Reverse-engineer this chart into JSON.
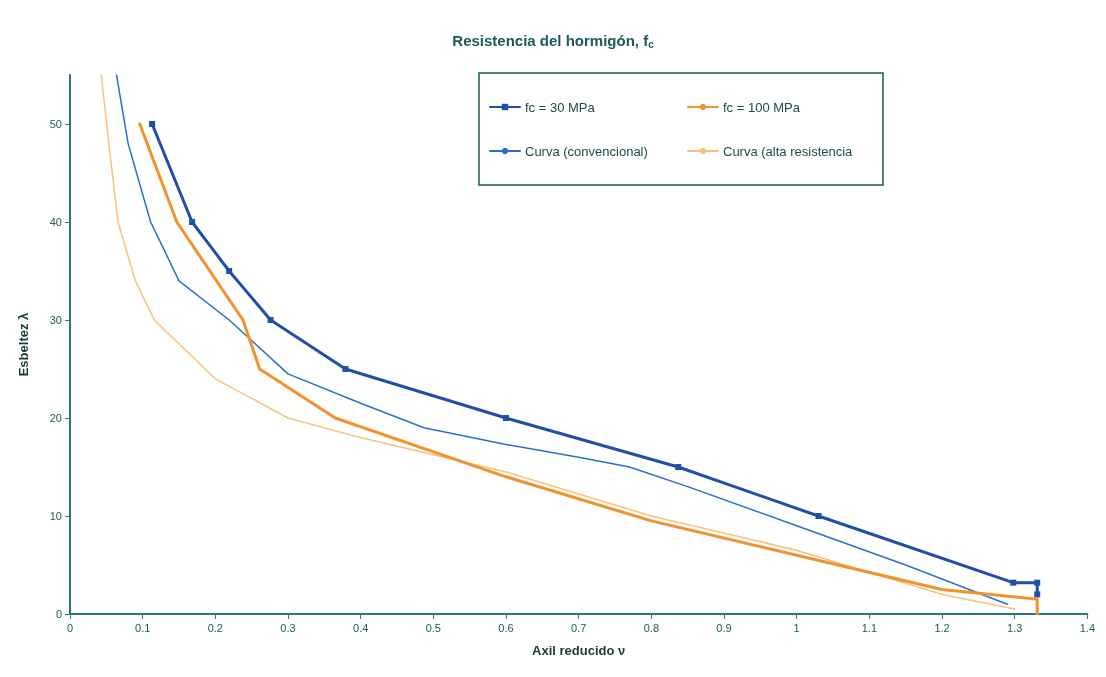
{
  "chart_data": {
    "type": "line",
    "title": "Resistencia del hormigón, f$_{c}$",
    "xlabel": "Axil reducido ν",
    "ylabel": "Esbeltez λ",
    "xlim": [
      0,
      1.4
    ],
    "xticks": [
      0,
      0.1,
      0.2,
      0.3,
      0.4,
      0.5,
      0.6,
      0.7,
      0.8,
      0.9,
      1,
      1.1,
      1.2,
      1.3,
      1.4
    ],
    "ylim": [
      0,
      55
    ],
    "yticks": [
      0,
      10,
      20,
      30,
      40,
      50
    ],
    "grid": false,
    "legend": "top right",
    "series": [
      {
        "name": "fc = 30 MPa",
        "color": "#1f4fa8",
        "marker": "square",
        "x": [
          0.113,
          0.168,
          0.219,
          0.276,
          0.379,
          0.6,
          0.837,
          1.03,
          1.298,
          1.331,
          1.331
        ],
        "values": [
          50,
          40,
          35,
          30,
          25,
          20,
          15,
          10,
          3.2,
          3.2,
          2
        ]
      },
      {
        "name": "fc = 100 MPa",
        "color": "#f0922e",
        "marker": "none",
        "x": [
          0.096,
          0.147,
          0.238,
          0.261,
          0.365,
          0.6,
          0.8,
          1.0,
          1.2,
          1.331,
          1.331
        ],
        "values": [
          50,
          40,
          30,
          25,
          20,
          14,
          9.5,
          6,
          2.5,
          1.5,
          0
        ]
      },
      {
        "name": "Curva (convencional)",
        "color": "#2a6fd0",
        "marker": "none",
        "x": [
          0.064,
          0.08,
          0.111,
          0.15,
          0.219,
          0.3,
          0.4,
          0.487,
          0.6,
          0.7,
          0.77,
          0.85,
          1.0,
          1.15,
          1.29
        ],
        "values": [
          55,
          48,
          40,
          34,
          30,
          24.5,
          21.5,
          19,
          17.3,
          16,
          15,
          13,
          9,
          5,
          1
        ]
      },
      {
        "name": "Curva (alta resistencia",
        "color": "#f8c07a",
        "marker": "none",
        "x": [
          0.043,
          0.055,
          0.066,
          0.09,
          0.116,
          0.2,
          0.3,
          0.4,
          0.6,
          0.8,
          1.0,
          1.2,
          1.3
        ],
        "values": [
          55,
          47,
          40,
          34,
          30,
          24,
          20,
          18,
          14.5,
          10,
          6.5,
          2,
          0.5
        ]
      }
    ]
  }
}
